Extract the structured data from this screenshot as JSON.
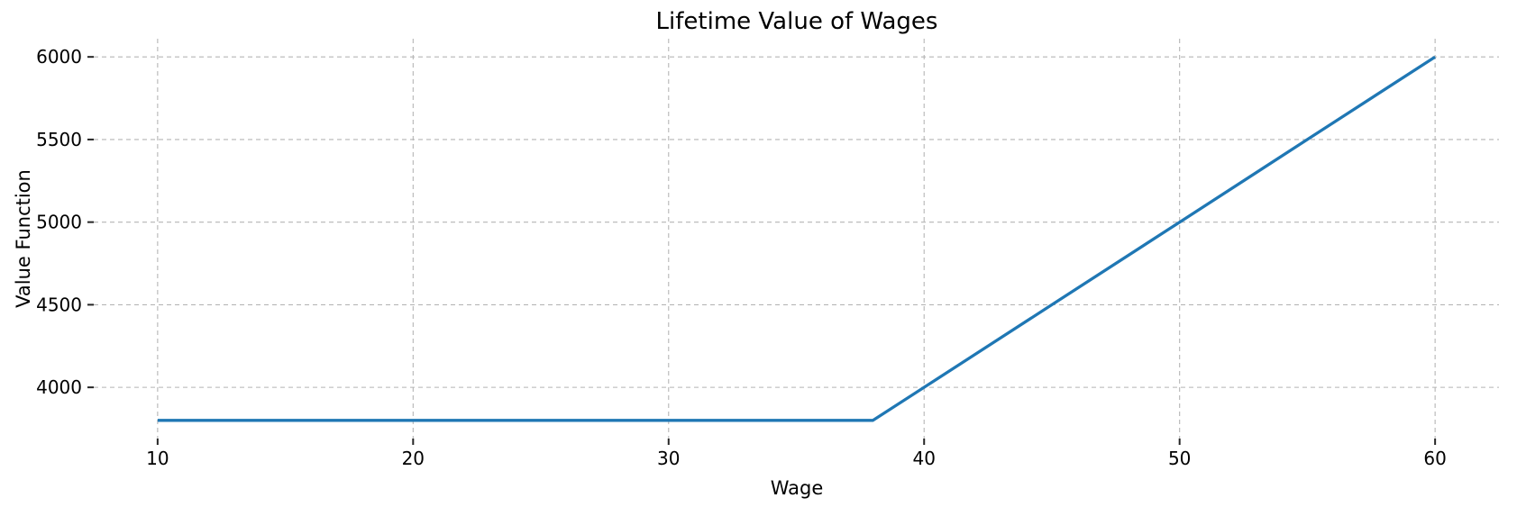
{
  "chart_data": {
    "type": "line",
    "title": "Lifetime Value of Wages",
    "xlabel": "Wage",
    "ylabel": "Value Function",
    "xlim": [
      7.5,
      62.5
    ],
    "ylim": [
      3690,
      6110
    ],
    "x_ticks": [
      10,
      20,
      30,
      40,
      50,
      60
    ],
    "y_ticks": [
      4000,
      4500,
      5000,
      5500,
      6000
    ],
    "grid": true,
    "legend_position": "none",
    "series": [
      {
        "name": "value-function-line",
        "color": "#1f77b4",
        "line_width": 3.3,
        "x": [
          10,
          15,
          20,
          25,
          30,
          35,
          38,
          40,
          45,
          50,
          55,
          60
        ],
        "y": [
          3800,
          3800,
          3800,
          3800,
          3800,
          3800,
          3800,
          4000,
          4500,
          5000,
          5500,
          6000
        ]
      }
    ]
  },
  "style": {
    "background_color": "#ffffff",
    "grid_color": "#b5b5b5",
    "grid_dash": "5,4",
    "tick_color": "#262626",
    "text_color": "#000000",
    "accent_color": "#1f77b4"
  }
}
